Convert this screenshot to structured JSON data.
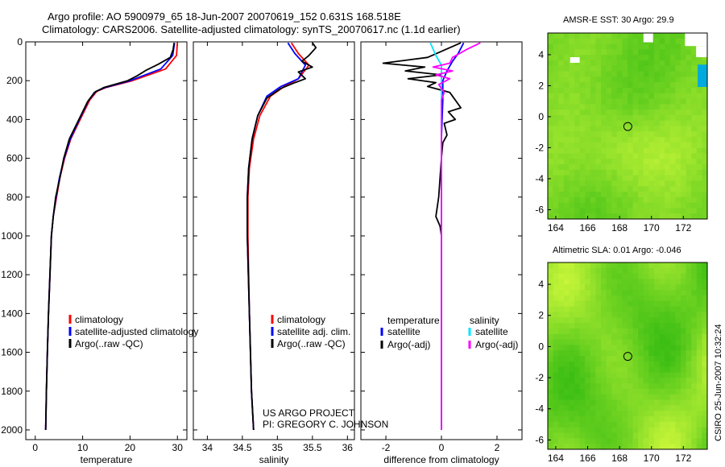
{
  "title_line1": "Argo profile: AO 5900979_65 18-Jun-2007 20070619_152 0.631S 168.518E",
  "title_line2": "Climatology: CARS2006. Satellite-adjusted climatology: synTS_20070617.nc (1.1d earlier)",
  "project_line1": "US ARGO PROJECT",
  "project_line2": "PI: GREGORY C. JOHNSON",
  "side_label": "CSIRO 25-Jun-2007 10:32:24",
  "colors": {
    "climatology": "#ff0000",
    "satellite": "#0000ff",
    "argo": "#000000",
    "salinity_satellite": "#00e5ff",
    "salinity_argo": "#ff00ff"
  },
  "chart_data": [
    {
      "type": "line",
      "xlabel": "temperature",
      "x_ticks": [
        0,
        10,
        20,
        30
      ],
      "xlim": [
        -2,
        32
      ],
      "y_ticks": [
        0,
        200,
        400,
        600,
        800,
        1000,
        1200,
        1400,
        1600,
        1800,
        2000
      ],
      "ylim": [
        2050,
        0
      ],
      "legend": [
        "climatology",
        "satellite-adjusted climatology",
        "Argo(..raw -QC)"
      ],
      "series": [
        {
          "name": "climatology",
          "color": "#ff0000",
          "points": [
            [
              30,
              5
            ],
            [
              29.8,
              70
            ],
            [
              27.5,
              140
            ],
            [
              20.5,
              200
            ],
            [
              15,
              235
            ],
            [
              13,
              255
            ],
            [
              11.5,
              300
            ],
            [
              9.5,
              400
            ],
            [
              7.5,
              500
            ],
            [
              6.2,
              600
            ],
            [
              5.2,
              700
            ],
            [
              4.5,
              800
            ],
            [
              3.8,
              900
            ],
            [
              3.4,
              1000
            ],
            [
              3.1,
              1200
            ],
            [
              2.8,
              1400
            ],
            [
              2.55,
              1600
            ],
            [
              2.35,
              1800
            ],
            [
              2.2,
              2000
            ]
          ]
        },
        {
          "name": "satellite-adjusted climatology",
          "color": "#0000ff",
          "points": [
            [
              29.4,
              5
            ],
            [
              29,
              70
            ],
            [
              26.5,
              140
            ],
            [
              20,
              200
            ],
            [
              14.8,
              235
            ],
            [
              12.8,
              255
            ],
            [
              11.3,
              300
            ],
            [
              9.3,
              400
            ],
            [
              7.4,
              500
            ],
            [
              6.1,
              600
            ],
            [
              5.1,
              700
            ],
            [
              4.4,
              800
            ],
            [
              3.8,
              900
            ],
            [
              3.4,
              1000
            ],
            [
              3.1,
              1200
            ],
            [
              2.8,
              1400
            ],
            [
              2.55,
              1600
            ],
            [
              2.35,
              1800
            ],
            [
              2.2,
              2000
            ]
          ]
        },
        {
          "name": "Argo(..raw -QC)",
          "color": "#000000",
          "points": [
            [
              29.3,
              5
            ],
            [
              29.1,
              40
            ],
            [
              28.5,
              80
            ],
            [
              26,
              115
            ],
            [
              23.5,
              145
            ],
            [
              21.5,
              175
            ],
            [
              19.5,
              200
            ],
            [
              14.5,
              235
            ],
            [
              12.5,
              260
            ],
            [
              11,
              310
            ],
            [
              9.2,
              400
            ],
            [
              7.2,
              500
            ],
            [
              6,
              600
            ],
            [
              5.2,
              700
            ],
            [
              4.3,
              800
            ],
            [
              3.8,
              900
            ],
            [
              3.4,
              1000
            ],
            [
              3.1,
              1200
            ],
            [
              2.8,
              1400
            ],
            [
              2.55,
              1600
            ],
            [
              2.35,
              1800
            ],
            [
              2.2,
              2000
            ]
          ]
        }
      ]
    },
    {
      "type": "line",
      "xlabel": "salinity",
      "x_ticks": [
        34,
        34.5,
        35,
        35.5,
        36
      ],
      "x_tick_labels": [
        "34",
        "34.5",
        "35",
        "35.5",
        "36"
      ],
      "xlim": [
        33.8,
        36.1
      ],
      "ylim": [
        2050,
        0
      ],
      "legend": [
        "climatology",
        "satellite adj. clim.",
        "Argo(..raw -QC)"
      ],
      "series": [
        {
          "name": "climatology",
          "color": "#ff0000",
          "points": [
            [
              35.2,
              5
            ],
            [
              35.3,
              60
            ],
            [
              35.45,
              120
            ],
            [
              35.3,
              190
            ],
            [
              35.1,
              230
            ],
            [
              34.9,
              280
            ],
            [
              34.75,
              380
            ],
            [
              34.66,
              500
            ],
            [
              34.6,
              650
            ],
            [
              34.58,
              800
            ],
            [
              34.58,
              1000
            ],
            [
              34.6,
              1400
            ],
            [
              34.63,
              1800
            ],
            [
              34.66,
              2000
            ]
          ]
        },
        {
          "name": "satellite adj. clim.",
          "color": "#0000ff",
          "points": [
            [
              35.15,
              5
            ],
            [
              35.25,
              60
            ],
            [
              35.4,
              120
            ],
            [
              35.3,
              190
            ],
            [
              35.05,
              230
            ],
            [
              34.85,
              280
            ],
            [
              34.72,
              380
            ],
            [
              34.64,
              500
            ],
            [
              34.59,
              650
            ],
            [
              34.57,
              800
            ],
            [
              34.57,
              1000
            ],
            [
              34.6,
              1400
            ],
            [
              34.63,
              1800
            ],
            [
              34.66,
              2000
            ]
          ]
        },
        {
          "name": "Argo(..raw -QC)",
          "color": "#000000",
          "points": [
            [
              35.5,
              5
            ],
            [
              35.55,
              30
            ],
            [
              35.45,
              70
            ],
            [
              35.35,
              100
            ],
            [
              35.5,
              130
            ],
            [
              35.3,
              155
            ],
            [
              35.4,
              190
            ],
            [
              35.25,
              210
            ],
            [
              35.05,
              240
            ],
            [
              34.85,
              290
            ],
            [
              34.72,
              380
            ],
            [
              34.64,
              500
            ],
            [
              34.59,
              650
            ],
            [
              34.57,
              800
            ],
            [
              34.57,
              1000
            ],
            [
              34.6,
              1400
            ],
            [
              34.63,
              1800
            ],
            [
              34.66,
              2000
            ]
          ]
        }
      ]
    },
    {
      "type": "line",
      "xlabel": "difference from climatology",
      "x_ticks": [
        -2,
        0,
        2
      ],
      "xlim": [
        -2.9,
        2.9
      ],
      "ylim": [
        2050,
        0
      ],
      "legend_groups": [
        {
          "header": "temperature",
          "items": [
            "satellite",
            "Argo(-adj)"
          ]
        },
        {
          "header": "salinity",
          "items": [
            "satellite",
            "Argo(-adj)"
          ]
        }
      ],
      "series": [
        {
          "name": "satellite",
          "group": "temperature",
          "color": "#0000ff",
          "points": [
            [
              0.8,
              5
            ],
            [
              0.6,
              60
            ],
            [
              0.4,
              100
            ],
            [
              0.2,
              150
            ],
            [
              0.05,
              200
            ],
            [
              0.05,
              300
            ],
            [
              0,
              500
            ],
            [
              0,
              1000
            ],
            [
              0,
              1500
            ],
            [
              0,
              2000
            ]
          ]
        },
        {
          "name": "Argo(-adj)",
          "group": "temperature",
          "color": "#000000",
          "points": [
            [
              0.7,
              5
            ],
            [
              -0.5,
              80
            ],
            [
              -2.1,
              110
            ],
            [
              -0.6,
              130
            ],
            [
              -1.3,
              150
            ],
            [
              0,
              170
            ],
            [
              -1.2,
              190
            ],
            [
              -0.2,
              210
            ],
            [
              -0.5,
              230
            ],
            [
              0.3,
              260
            ],
            [
              0.7,
              340
            ],
            [
              0.25,
              360
            ],
            [
              0.5,
              400
            ],
            [
              0.1,
              420
            ],
            [
              0.2,
              480
            ],
            [
              0.05,
              520
            ],
            [
              0,
              600
            ],
            [
              -0.1,
              800
            ],
            [
              -0.2,
              900
            ],
            [
              -0.05,
              950
            ],
            [
              0,
              1000
            ],
            [
              0,
              1400
            ],
            [
              0,
              2000
            ]
          ]
        },
        {
          "name": "satellite",
          "group": "salinity",
          "color": "#00e5ff",
          "points": [
            [
              -0.4,
              5
            ],
            [
              -0.2,
              70
            ],
            [
              0,
              120
            ],
            [
              0,
              200
            ],
            [
              0,
              400
            ],
            [
              0,
              1000
            ],
            [
              0,
              1500
            ],
            [
              0,
              2000
            ]
          ]
        },
        {
          "name": "Argo(-adj)",
          "group": "salinity",
          "color": "#ff00ff",
          "points": [
            [
              1.4,
              5
            ],
            [
              0.9,
              40
            ],
            [
              0.4,
              80
            ],
            [
              0.3,
              110
            ],
            [
              -0.3,
              130
            ],
            [
              0.4,
              150
            ],
            [
              -0.2,
              170
            ],
            [
              0.3,
              190
            ],
            [
              -0.1,
              220
            ],
            [
              0.1,
              260
            ],
            [
              0,
              300
            ],
            [
              0,
              500
            ],
            [
              0,
              1000
            ],
            [
              0,
              2000
            ]
          ]
        }
      ]
    },
    {
      "type": "heatmap",
      "title": "AMSR-E SST: 30 Argo: 29.9",
      "x_ticks": [
        164,
        166,
        168,
        170,
        172
      ],
      "y_ticks": [
        4,
        2,
        0,
        -2,
        -4,
        -6
      ],
      "xlim": [
        163.5,
        173.5
      ],
      "ylim": [
        -6.6,
        5.4
      ],
      "argo_position": [
        168.518,
        -0.631
      ]
    },
    {
      "type": "heatmap",
      "title": "Altimetric SLA: 0.01 Argo: -0.046",
      "x_ticks": [
        164,
        166,
        168,
        170,
        172
      ],
      "y_ticks": [
        4,
        2,
        0,
        -2,
        -4,
        -6
      ],
      "xlim": [
        163.5,
        173.5
      ],
      "ylim": [
        -6.6,
        5.4
      ],
      "argo_position": [
        168.518,
        -0.631
      ]
    }
  ]
}
